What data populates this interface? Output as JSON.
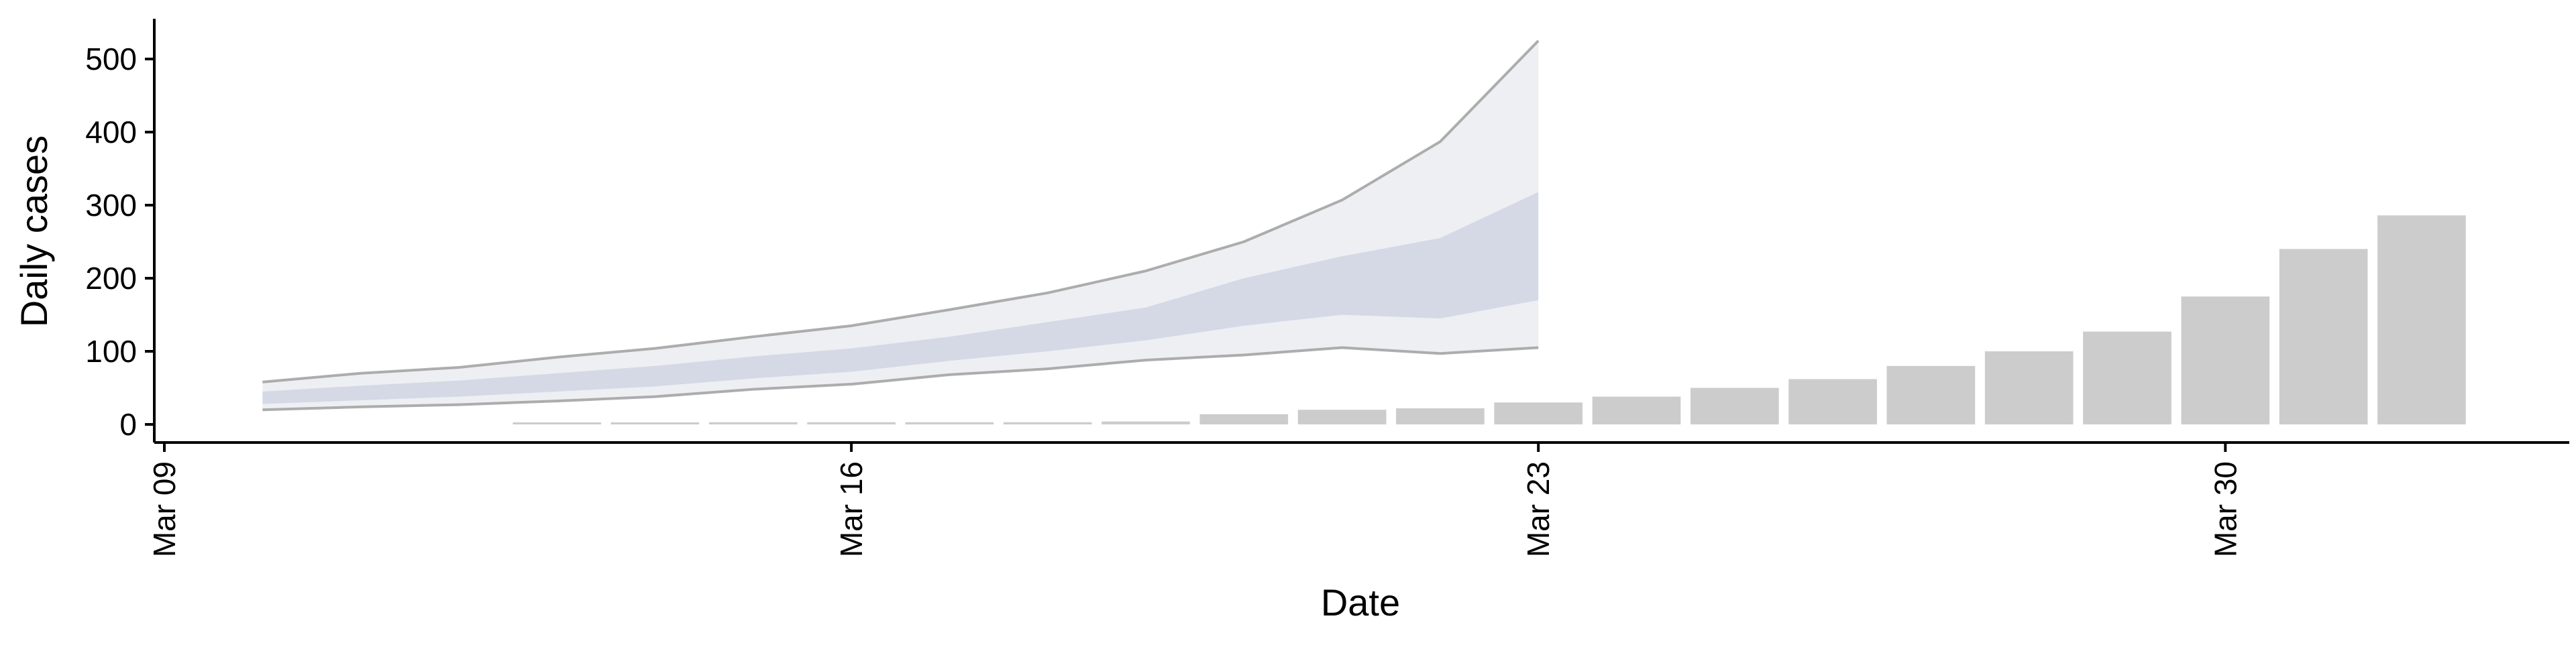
{
  "chart_data": {
    "type": "area",
    "xlabel": "Date",
    "ylabel": "Daily cases",
    "x_range": [
      "2020-03-09",
      "2020-04-04"
    ],
    "ylim": [
      -25,
      550
    ],
    "y_ticks": [
      0,
      100,
      200,
      300,
      400,
      500
    ],
    "x_ticks": [
      {
        "date": "2020-03-09",
        "label": "Mar 09"
      },
      {
        "date": "2020-03-16",
        "label": "Mar 16"
      },
      {
        "date": "2020-03-23",
        "label": "Mar 23"
      },
      {
        "date": "2020-03-30",
        "label": "Mar 30"
      }
    ],
    "grid": false,
    "legend": "none",
    "colors": {
      "bars": "#cccccc",
      "band_outer": "#dfe2ea",
      "band_inner": "#b8bfd6",
      "bound_line": "#9a9a9a",
      "axis": "#000000"
    },
    "reported_cases": {
      "dates": [
        "2020-03-13",
        "2020-03-14",
        "2020-03-15",
        "2020-03-16",
        "2020-03-17",
        "2020-03-18",
        "2020-03-19",
        "2020-03-20",
        "2020-03-21",
        "2020-03-22",
        "2020-03-23",
        "2020-03-24",
        "2020-03-25",
        "2020-03-26",
        "2020-03-27",
        "2020-03-28",
        "2020-03-29",
        "2020-03-30",
        "2020-03-31",
        "2020-04-01"
      ],
      "values": [
        1,
        2,
        3,
        3,
        3,
        3,
        4,
        14,
        20,
        22,
        30,
        38,
        50,
        62,
        80,
        100,
        127,
        175,
        240,
        286
      ]
    },
    "estimate": {
      "dates": [
        "2020-03-10",
        "2020-03-11",
        "2020-03-12",
        "2020-03-13",
        "2020-03-14",
        "2020-03-15",
        "2020-03-16",
        "2020-03-17",
        "2020-03-18",
        "2020-03-19",
        "2020-03-20",
        "2020-03-21",
        "2020-03-22",
        "2020-03-23"
      ],
      "lower_90": [
        20,
        24,
        27,
        32,
        38,
        48,
        55,
        68,
        76,
        88,
        95,
        105,
        97,
        105
      ],
      "upper_90": [
        58,
        70,
        78,
        92,
        104,
        120,
        135,
        157,
        180,
        210,
        250,
        307,
        387,
        525
      ],
      "lower_50": [
        28,
        33,
        38,
        45,
        52,
        63,
        72,
        87,
        100,
        115,
        135,
        150,
        145,
        170
      ],
      "upper_50": [
        45,
        53,
        60,
        70,
        80,
        93,
        104,
        120,
        140,
        160,
        200,
        230,
        255,
        318
      ]
    }
  }
}
